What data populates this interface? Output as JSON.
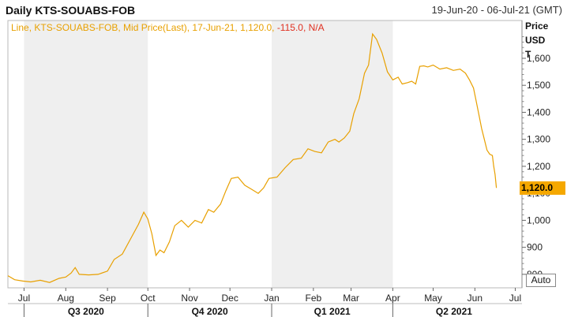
{
  "header": {
    "title": "Daily KTS-SOUABS-FOB",
    "date_range": "19-Jun-20 - 06-Jul-21 (GMT)"
  },
  "legend": {
    "main": "Line, KTS-SOUABS-FOB, Mid Price(Last), 17-Jun-21, 1,120.0,",
    "change": "-115.0,",
    "na": "N/A"
  },
  "axis": {
    "price_label_1": "Price",
    "price_label_2": "USD",
    "price_label_3": "T",
    "last_value": "1,120.0",
    "auto_button": "Auto"
  },
  "colors": {
    "line": "#e8a000",
    "badge": "#f5a800",
    "shade": "#efefef"
  },
  "chart_data": {
    "type": "line",
    "title": "Daily KTS-SOUABS-FOB",
    "series": [
      {
        "name": "KTS-SOUABS-FOB",
        "points": [
          [
            "2020-06-19",
            795
          ],
          [
            "2020-06-24",
            780
          ],
          [
            "2020-06-30",
            775
          ],
          [
            "2020-07-06",
            772
          ],
          [
            "2020-07-13",
            778
          ],
          [
            "2020-07-20",
            770
          ],
          [
            "2020-07-27",
            785
          ],
          [
            "2020-08-01",
            790
          ],
          [
            "2020-08-05",
            805
          ],
          [
            "2020-08-08",
            825
          ],
          [
            "2020-08-11",
            800
          ],
          [
            "2020-08-18",
            798
          ],
          [
            "2020-08-25",
            800
          ],
          [
            "2020-09-01",
            812
          ],
          [
            "2020-09-06",
            855
          ],
          [
            "2020-09-12",
            875
          ],
          [
            "2020-09-18",
            930
          ],
          [
            "2020-09-24",
            985
          ],
          [
            "2020-09-28",
            1030
          ],
          [
            "2020-10-01",
            1005
          ],
          [
            "2020-10-04",
            950
          ],
          [
            "2020-10-07",
            870
          ],
          [
            "2020-10-10",
            890
          ],
          [
            "2020-10-13",
            880
          ],
          [
            "2020-10-17",
            920
          ],
          [
            "2020-10-21",
            980
          ],
          [
            "2020-10-26",
            1000
          ],
          [
            "2020-10-31",
            975
          ],
          [
            "2020-11-05",
            1000
          ],
          [
            "2020-11-10",
            990
          ],
          [
            "2020-11-15",
            1040
          ],
          [
            "2020-11-19",
            1030
          ],
          [
            "2020-11-24",
            1060
          ],
          [
            "2020-11-28",
            1110
          ],
          [
            "2020-12-02",
            1155
          ],
          [
            "2020-12-07",
            1160
          ],
          [
            "2020-12-12",
            1130
          ],
          [
            "2020-12-17",
            1115
          ],
          [
            "2020-12-22",
            1100
          ],
          [
            "2020-12-26",
            1120
          ],
          [
            "2020-12-30",
            1155
          ],
          [
            "2021-01-05",
            1160
          ],
          [
            "2021-01-11",
            1195
          ],
          [
            "2021-01-17",
            1225
          ],
          [
            "2021-01-23",
            1230
          ],
          [
            "2021-01-28",
            1265
          ],
          [
            "2021-02-02",
            1255
          ],
          [
            "2021-02-07",
            1250
          ],
          [
            "2021-02-12",
            1290
          ],
          [
            "2021-02-17",
            1300
          ],
          [
            "2021-02-20",
            1290
          ],
          [
            "2021-02-24",
            1305
          ],
          [
            "2021-02-28",
            1330
          ],
          [
            "2021-03-03",
            1395
          ],
          [
            "2021-03-07",
            1450
          ],
          [
            "2021-03-11",
            1545
          ],
          [
            "2021-03-14",
            1575
          ],
          [
            "2021-03-17",
            1690
          ],
          [
            "2021-03-20",
            1670
          ],
          [
            "2021-03-24",
            1620
          ],
          [
            "2021-03-28",
            1550
          ],
          [
            "2021-04-01",
            1520
          ],
          [
            "2021-04-05",
            1530
          ],
          [
            "2021-04-08",
            1505
          ],
          [
            "2021-04-12",
            1510
          ],
          [
            "2021-04-15",
            1515
          ],
          [
            "2021-04-18",
            1505
          ],
          [
            "2021-04-21",
            1570
          ],
          [
            "2021-04-24",
            1572
          ],
          [
            "2021-04-27",
            1568
          ],
          [
            "2021-05-01",
            1575
          ],
          [
            "2021-05-06",
            1560
          ],
          [
            "2021-05-11",
            1565
          ],
          [
            "2021-05-16",
            1555
          ],
          [
            "2021-05-21",
            1560
          ],
          [
            "2021-05-25",
            1545
          ],
          [
            "2021-05-28",
            1520
          ],
          [
            "2021-05-31",
            1490
          ],
          [
            "2021-06-02",
            1440
          ],
          [
            "2021-06-04",
            1390
          ],
          [
            "2021-06-06",
            1340
          ],
          [
            "2021-06-08",
            1300
          ],
          [
            "2021-06-10",
            1260
          ],
          [
            "2021-06-12",
            1245
          ],
          [
            "2021-06-14",
            1240
          ],
          [
            "2021-06-15",
            1200
          ],
          [
            "2021-06-16",
            1170
          ],
          [
            "2021-06-17",
            1120
          ]
        ]
      }
    ],
    "ylim": [
      750,
      1740
    ],
    "xlim": [
      "2020-06-19",
      "2021-07-06"
    ],
    "y_ticks": [
      800,
      900,
      1000,
      1100,
      1200,
      1300,
      1400,
      1500,
      1600
    ],
    "y_tick_labels": [
      "800",
      "900",
      "1,000",
      "1,100",
      "1,200",
      "1,300",
      "1,400",
      "1,500",
      "1,600"
    ],
    "month_ticks": [
      {
        "date": "2020-07-01",
        "label": "Jul"
      },
      {
        "date": "2020-08-01",
        "label": "Aug"
      },
      {
        "date": "2020-09-01",
        "label": "Sep"
      },
      {
        "date": "2020-10-01",
        "label": "Oct"
      },
      {
        "date": "2020-11-01",
        "label": "Nov"
      },
      {
        "date": "2020-12-01",
        "label": "Dec"
      },
      {
        "date": "2021-01-01",
        "label": "Jan"
      },
      {
        "date": "2021-02-01",
        "label": "Feb"
      },
      {
        "date": "2021-03-01",
        "label": "Mar"
      },
      {
        "date": "2021-04-01",
        "label": "Apr"
      },
      {
        "date": "2021-05-01",
        "label": "May"
      },
      {
        "date": "2021-06-01",
        "label": "Jun"
      },
      {
        "date": "2021-07-01",
        "label": "Jul"
      }
    ],
    "quarters": [
      {
        "label": "Q3 2020",
        "start": "2020-07-01",
        "end": "2020-10-01",
        "shaded": true
      },
      {
        "label": "Q4 2020",
        "start": "2020-10-01",
        "end": "2021-01-01",
        "shaded": false
      },
      {
        "label": "Q1 2021",
        "start": "2021-01-01",
        "end": "2021-04-01",
        "shaded": true
      },
      {
        "label": "Q2 2021",
        "start": "2021-04-01",
        "end": "2021-07-01",
        "shaded": false
      }
    ],
    "grid": false,
    "legend_position": "top-left"
  }
}
